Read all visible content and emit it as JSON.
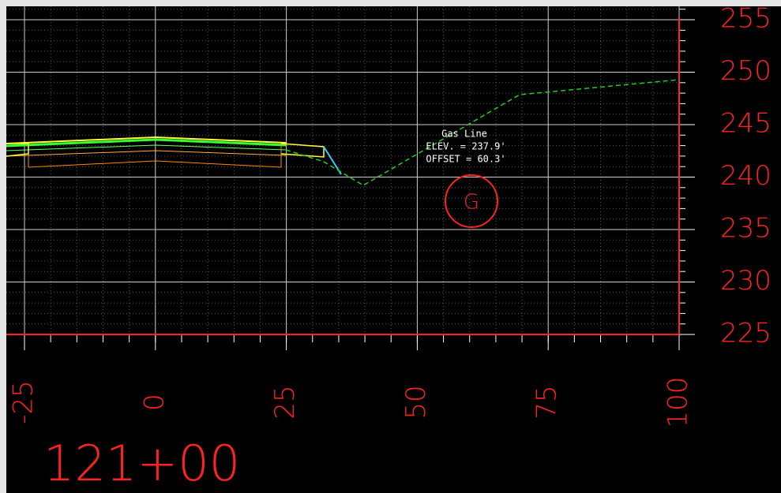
{
  "station": "121+00",
  "x_axis": {
    "ticks": [
      -25,
      0,
      25,
      50,
      75,
      100
    ]
  },
  "y_axis": {
    "ticks": [
      225,
      230,
      235,
      240,
      245,
      250,
      255
    ]
  },
  "annotation": {
    "lines": [
      "Gas Line",
      "ELEV. = 237.9'",
      "OFFSET = 60.3'"
    ]
  },
  "marker": "G"
}
